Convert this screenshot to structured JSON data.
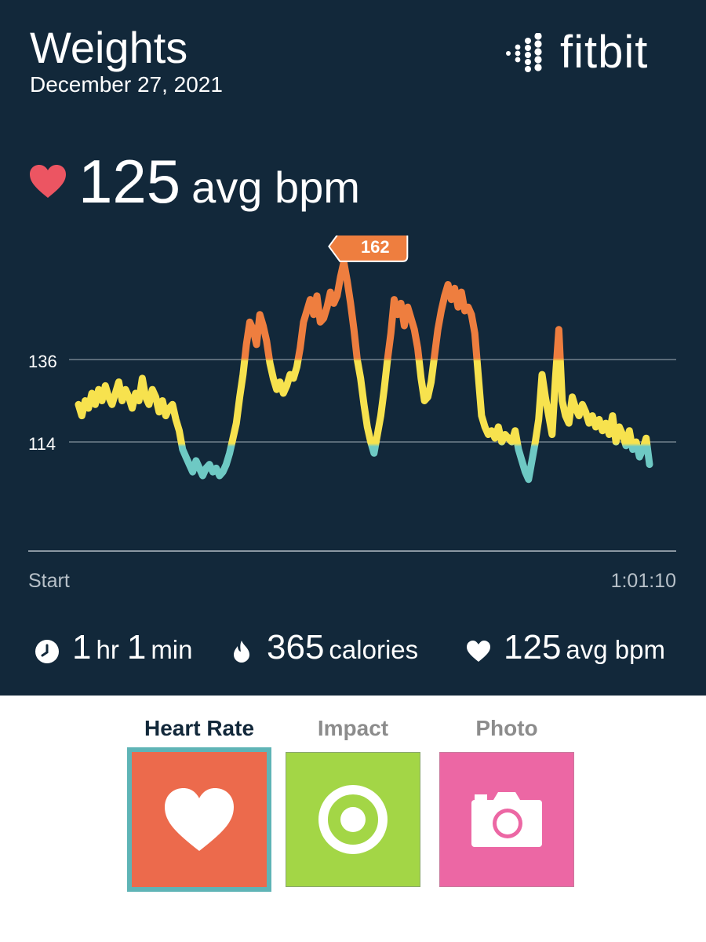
{
  "header": {
    "title": "Weights",
    "date": "December 27, 2021",
    "logo_text": "fitbit"
  },
  "summary": {
    "avg_value": "125",
    "avg_unit": "avg bpm"
  },
  "colors": {
    "background": "#12283a",
    "peak": "#ee7e3f",
    "cardio": "#f7e24e",
    "fat_burn": "#6ec9c4",
    "heart": "#ec5562",
    "tab_heart_rate": "#ec6a4c",
    "tab_impact": "#a3d646",
    "tab_photo": "#ec67a4",
    "selected_border": "#5fb4b6"
  },
  "chart_data": {
    "type": "line",
    "series": [
      {
        "values": [
          124,
          121,
          125,
          123,
          127,
          124,
          128,
          125,
          129,
          126,
          124,
          127,
          130,
          125,
          128,
          126,
          123,
          127,
          125,
          131,
          126,
          124,
          128,
          126,
          122,
          125,
          121,
          123,
          124,
          120,
          117,
          112,
          110,
          108,
          106,
          109,
          107,
          105,
          107,
          108,
          106,
          107,
          105,
          106,
          108,
          111,
          115,
          119,
          126,
          132,
          140,
          146,
          144,
          140,
          148,
          145,
          141,
          135,
          131,
          128,
          130,
          127,
          129,
          132,
          131,
          134,
          139,
          146,
          149,
          152,
          148,
          153,
          146,
          147,
          150,
          154,
          151,
          153,
          158,
          162,
          157,
          151,
          144,
          136,
          131,
          124,
          118,
          114,
          111,
          116,
          121,
          128,
          136,
          143,
          152,
          148,
          151,
          145,
          150,
          147,
          144,
          139,
          131,
          125,
          126,
          130,
          137,
          144,
          149,
          153,
          156,
          152,
          155,
          150,
          154,
          149,
          150,
          148,
          143,
          132,
          121,
          118,
          116,
          117,
          115,
          118,
          114,
          116,
          115,
          114,
          117,
          112,
          109,
          106,
          104,
          109,
          114,
          120,
          132,
          126,
          121,
          116,
          131,
          144,
          125,
          121,
          119,
          126,
          123,
          121,
          124,
          122,
          119,
          121,
          118,
          120,
          117,
          119,
          116,
          121,
          114,
          118,
          116,
          113,
          117,
          112,
          114,
          110,
          112,
          115,
          108
        ]
      }
    ],
    "x_labels": [
      "Start",
      "1:01:10"
    ],
    "y_ticks": [
      136,
      114
    ],
    "peak_value": 162,
    "ylim": [
      90,
      170
    ],
    "grid": true
  },
  "stats": {
    "duration_hr": "1",
    "duration_hr_unit": "hr",
    "duration_min": "1",
    "duration_min_unit": "min",
    "calories": "365",
    "calories_unit": "calories",
    "avg_bpm": "125",
    "avg_bpm_unit": "avg bpm"
  },
  "tabs": [
    {
      "label": "Heart Rate",
      "icon": "heart-icon",
      "selected": true
    },
    {
      "label": "Impact",
      "icon": "target-icon",
      "selected": false
    },
    {
      "label": "Photo",
      "icon": "camera-icon",
      "selected": false
    }
  ]
}
